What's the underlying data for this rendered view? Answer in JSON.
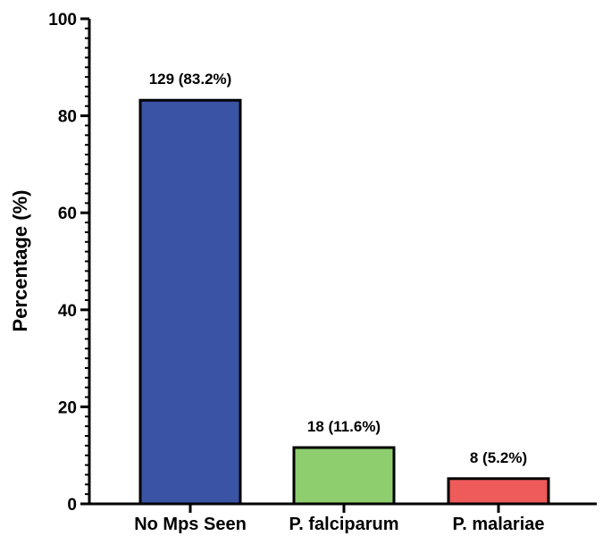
{
  "chart_data": {
    "type": "bar",
    "title": "",
    "xlabel": "",
    "ylabel": "Percentage (%)",
    "ylim": [
      0,
      100
    ],
    "yticks": [
      0,
      20,
      40,
      60,
      80,
      100
    ],
    "categories": [
      "No Mps Seen",
      "P. falciparum",
      "P. malariae"
    ],
    "values": [
      83.2,
      11.6,
      5.2
    ],
    "data_labels": [
      "129 (83.2%)",
      "18 (11.6%)",
      "8 (5.2%)"
    ],
    "bar_colors": [
      "#3a53a4",
      "#8fce6f",
      "#ef5a5a"
    ],
    "edge_color": "#000000",
    "grid": false
  }
}
